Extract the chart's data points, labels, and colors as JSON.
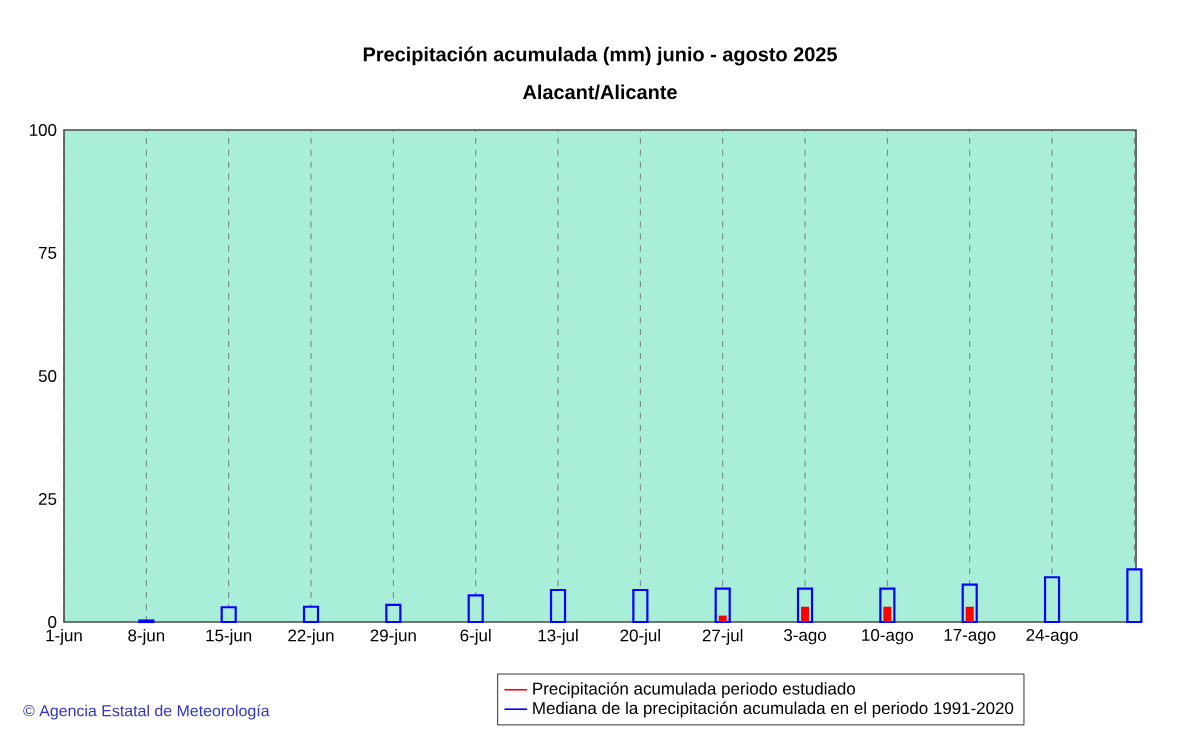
{
  "chart_data": {
    "type": "bar",
    "title": "Precipitación acumulada (mm) junio - agosto 2025",
    "subtitle": "Alacant/Alicante",
    "categories": [
      "1-jun",
      "8-jun",
      "15-jun",
      "22-jun",
      "29-jun",
      "6-jul",
      "13-jul",
      "20-jul",
      "27-jul",
      "3-ago",
      "10-ago",
      "17-ago",
      "24-ago",
      null
    ],
    "series": [
      {
        "name": "Precipitación acumulada periodo estudiado",
        "color": "#ff0000",
        "values": [
          null,
          0,
          0,
          0,
          0,
          0,
          0,
          0,
          1.3,
          3.1,
          3.1,
          3.1,
          null,
          null
        ]
      },
      {
        "name": "Mediana de la precipitación acumulada en el periodo 1991-2020",
        "color": "#0000ff",
        "values": [
          null,
          0.3,
          3,
          3.1,
          3.5,
          5.4,
          6.5,
          6.5,
          6.8,
          6.8,
          6.8,
          7.6,
          9.1,
          10.7
        ]
      }
    ],
    "ylim": [
      0,
      100
    ],
    "yticks": [
      0,
      25,
      50,
      75,
      100
    ],
    "grid": "x",
    "legend": "bottom",
    "annotations": [
      "© Agencia Estatal de Meteorología"
    ]
  }
}
